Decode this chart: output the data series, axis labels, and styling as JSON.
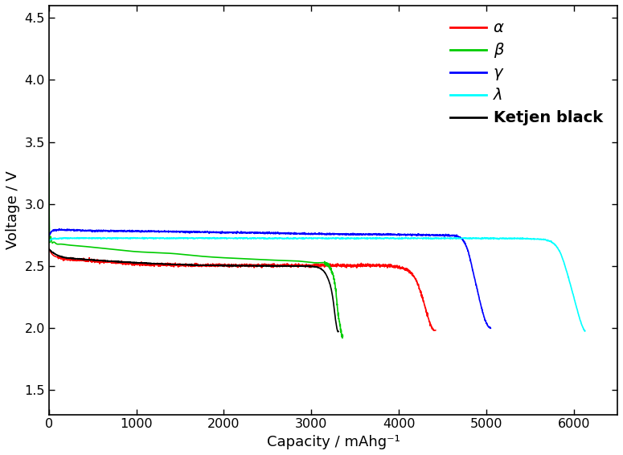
{
  "title": "",
  "xlabel": "Capacity / mAhg⁻¹",
  "ylabel": "Voltage / V",
  "xlim": [
    0,
    6500
  ],
  "ylim": [
    1.3,
    4.6
  ],
  "xticks": [
    0,
    1000,
    2000,
    3000,
    4000,
    5000,
    6000
  ],
  "yticks": [
    1.5,
    2.0,
    2.5,
    3.0,
    3.5,
    4.0,
    4.5
  ],
  "legend": [
    {
      "label": "α",
      "color": "red",
      "bold": false
    },
    {
      "label": "β",
      "color": "#00cc00",
      "bold": false
    },
    {
      "label": "γ",
      "color": "blue",
      "bold": false
    },
    {
      "label": "λ",
      "color": "cyan",
      "bold": false
    },
    {
      "label": "Ketjen black",
      "color": "black",
      "bold": true
    }
  ],
  "noise_seed": 42,
  "alpha_curve": {
    "color": "red",
    "x": [
      0,
      30,
      60,
      100,
      150,
      200,
      300,
      400,
      500,
      600,
      700,
      800,
      900,
      1000,
      1200,
      1400,
      1600,
      1800,
      2000,
      2200,
      2500,
      2800,
      3000,
      3200,
      3400,
      3600,
      3800,
      4000,
      4100,
      4200,
      4280,
      4350,
      4420
    ],
    "y": [
      2.64,
      2.6,
      2.58,
      2.57,
      2.56,
      2.555,
      2.55,
      2.545,
      2.54,
      2.535,
      2.53,
      2.525,
      2.52,
      2.515,
      2.51,
      2.508,
      2.505,
      2.503,
      2.502,
      2.502,
      2.502,
      2.502,
      2.502,
      2.502,
      2.502,
      2.502,
      2.502,
      2.49,
      2.465,
      2.38,
      2.22,
      2.05,
      1.98
    ],
    "noise_amp": 0.006,
    "noise_region": [
      100,
      4400
    ]
  },
  "beta_curve": {
    "color": "#00cc00",
    "x": [
      0,
      5,
      15,
      30,
      50,
      80,
      120,
      200,
      350,
      500,
      700,
      900,
      1100,
      1400,
      1700,
      2000,
      2300,
      2600,
      2900,
      3100,
      3200,
      3250,
      3280,
      3300,
      3320,
      3340,
      3360
    ],
    "y": [
      3.25,
      2.8,
      2.72,
      2.7,
      2.69,
      2.68,
      2.675,
      2.67,
      2.66,
      2.65,
      2.635,
      2.62,
      2.61,
      2.6,
      2.58,
      2.565,
      2.555,
      2.545,
      2.535,
      2.525,
      2.5,
      2.42,
      2.3,
      2.15,
      2.05,
      1.97,
      1.93
    ],
    "noise_amp": 0.008,
    "noise_region": [
      3150,
      3360
    ]
  },
  "gamma_curve": {
    "color": "blue",
    "x": [
      0,
      20,
      50,
      100,
      200,
      400,
      700,
      1000,
      1500,
      2000,
      2500,
      3000,
      3500,
      4000,
      4200,
      4400,
      4600,
      4700,
      4800,
      4850,
      4900,
      4950,
      5000,
      5050
    ],
    "y": [
      2.74,
      2.77,
      2.785,
      2.79,
      2.79,
      2.785,
      2.782,
      2.78,
      2.775,
      2.77,
      2.765,
      2.758,
      2.755,
      2.752,
      2.75,
      2.748,
      2.745,
      2.73,
      2.6,
      2.45,
      2.3,
      2.15,
      2.04,
      2.0
    ],
    "noise_amp": 0.003,
    "noise_region": [
      0,
      5050
    ]
  },
  "lambda_curve": {
    "color": "cyan",
    "x": [
      0,
      30,
      80,
      200,
      500,
      1000,
      1500,
      2000,
      2500,
      3000,
      3500,
      4000,
      4500,
      5000,
      5200,
      5400,
      5600,
      5700,
      5750,
      5800,
      5850,
      5900,
      5950,
      6000,
      6050,
      6100,
      6130
    ],
    "y": [
      2.7,
      2.715,
      2.72,
      2.722,
      2.723,
      2.723,
      2.723,
      2.723,
      2.722,
      2.722,
      2.722,
      2.722,
      2.722,
      2.722,
      2.721,
      2.72,
      2.715,
      2.706,
      2.69,
      2.66,
      2.6,
      2.5,
      2.38,
      2.25,
      2.12,
      2.01,
      1.97
    ],
    "noise_amp": 0.002,
    "noise_region": [
      0,
      6130
    ]
  },
  "ketjen_curve": {
    "color": "black",
    "x": [
      0,
      30,
      60,
      100,
      200,
      300,
      400,
      600,
      800,
      1000,
      1200,
      1500,
      1800,
      2000,
      2200,
      2500,
      2800,
      3000,
      3100,
      3200,
      3250,
      3280,
      3310
    ],
    "y": [
      2.635,
      2.615,
      2.6,
      2.585,
      2.565,
      2.558,
      2.552,
      2.542,
      2.533,
      2.525,
      2.518,
      2.51,
      2.504,
      2.502,
      2.501,
      2.5,
      2.498,
      2.495,
      2.48,
      2.38,
      2.22,
      2.05,
      1.97
    ],
    "noise_amp": 0.001,
    "noise_region": [
      0,
      3310
    ]
  }
}
